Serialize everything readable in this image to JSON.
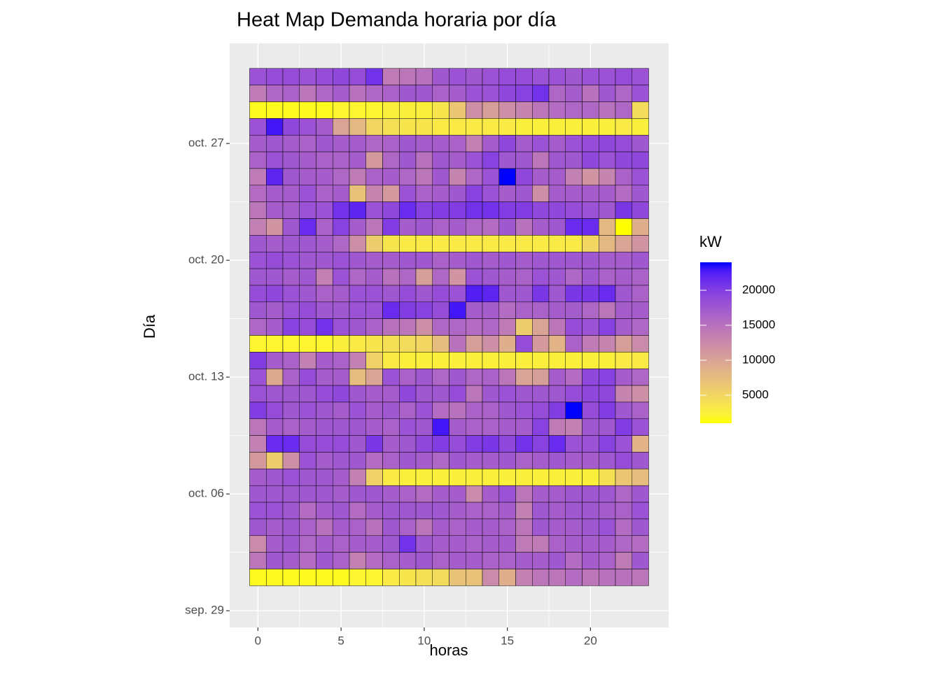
{
  "chart_data": {
    "type": "heatmap",
    "title": "Heat Map Demanda horaria por día",
    "x_label": "horas",
    "y_label": "Día",
    "x": [
      0,
      1,
      2,
      3,
      4,
      5,
      6,
      7,
      8,
      9,
      10,
      11,
      12,
      13,
      14,
      15,
      16,
      17,
      18,
      19,
      20,
      21,
      22,
      23
    ],
    "y": [
      "oct. 31",
      "oct. 30",
      "oct. 29",
      "oct. 28",
      "oct. 27",
      "oct. 26",
      "oct. 25",
      "oct. 24",
      "oct. 23",
      "oct. 22",
      "oct. 21",
      "oct. 20",
      "oct. 19",
      "oct. 18",
      "oct. 17",
      "oct. 16",
      "oct. 15",
      "oct. 14",
      "oct. 13",
      "oct. 12",
      "oct. 11",
      "oct. 10",
      "oct. 09",
      "oct. 08",
      "oct. 07",
      "oct. 06",
      "oct. 05",
      "oct. 04",
      "oct. 03",
      "oct. 02",
      "oct. 01"
    ],
    "values": [
      [
        18000,
        18500,
        18500,
        18000,
        18500,
        19000,
        18500,
        21000,
        14000,
        14500,
        15000,
        17500,
        18000,
        17500,
        18000,
        18500,
        18500,
        18000,
        18000,
        17500,
        18000,
        18000,
        18500,
        18000
      ],
      [
        14000,
        16000,
        16500,
        14500,
        16000,
        17000,
        15000,
        16000,
        16500,
        17500,
        17500,
        16500,
        17000,
        18000,
        18000,
        19000,
        19500,
        21000,
        16000,
        17000,
        15000,
        17500,
        16000,
        18000
      ],
      [
        1500,
        1500,
        1500,
        1500,
        1500,
        2000,
        2000,
        2000,
        2500,
        2500,
        2500,
        3500,
        6500,
        12000,
        10500,
        12000,
        13000,
        14500,
        15500,
        16000,
        16000,
        15000,
        16000,
        4500
      ],
      [
        18000,
        23000,
        19000,
        18000,
        17000,
        10000,
        8000,
        5000,
        4000,
        3500,
        3500,
        3000,
        3000,
        3000,
        3000,
        3000,
        2500,
        2500,
        2500,
        2500,
        2500,
        2500,
        3000,
        2500
      ],
      [
        17000,
        17500,
        17000,
        16500,
        17500,
        17000,
        17000,
        16000,
        16500,
        17500,
        17000,
        17000,
        16500,
        13500,
        17000,
        19000,
        17000,
        18000,
        17000,
        18000,
        18500,
        19000,
        18500,
        17500
      ],
      [
        16500,
        18000,
        17500,
        17000,
        16500,
        16500,
        17000,
        11000,
        16000,
        17500,
        15000,
        17500,
        17000,
        18000,
        19500,
        17500,
        17500,
        14500,
        17500,
        17500,
        19000,
        18000,
        19000,
        19000
      ],
      [
        14000,
        22000,
        17500,
        17000,
        17000,
        16000,
        14000,
        16500,
        17000,
        16000,
        14500,
        17500,
        13000,
        16000,
        18000,
        24000,
        19000,
        17000,
        17000,
        13500,
        11500,
        13000,
        16500,
        18000
      ],
      [
        15500,
        17000,
        17000,
        18000,
        16500,
        17000,
        7000,
        13000,
        11000,
        18000,
        16500,
        17000,
        17500,
        19500,
        18000,
        17000,
        17500,
        12000,
        17000,
        17000,
        17000,
        17000,
        15500,
        17500
      ],
      [
        14500,
        17000,
        17000,
        18000,
        18000,
        21000,
        22000,
        18000,
        19000,
        21500,
        19500,
        20000,
        20000,
        21000,
        21000,
        20000,
        20000,
        19000,
        19000,
        18500,
        18000,
        17500,
        20500,
        19000
      ],
      [
        13500,
        11500,
        17500,
        21500,
        16500,
        19500,
        17000,
        14500,
        20000,
        17000,
        17500,
        16500,
        17000,
        16000,
        15500,
        17500,
        15000,
        17000,
        17500,
        21500,
        21500,
        8000,
        1000,
        9000
      ],
      [
        17500,
        17000,
        17500,
        17500,
        17000,
        16000,
        12000,
        6000,
        3500,
        3000,
        3000,
        3000,
        3000,
        3000,
        3000,
        3000,
        3000,
        3000,
        3000,
        3000,
        5000,
        8000,
        10000,
        11500
      ],
      [
        18000,
        18500,
        18000,
        17500,
        17500,
        18000,
        17500,
        17000,
        17000,
        17500,
        17500,
        16500,
        17000,
        17500,
        17000,
        17500,
        17000,
        17500,
        17500,
        17500,
        17500,
        17000,
        17000,
        17500
      ],
      [
        17500,
        17500,
        17000,
        17500,
        13500,
        18000,
        16000,
        17000,
        15000,
        16000,
        10500,
        16000,
        11500,
        18000,
        17500,
        17000,
        16500,
        18000,
        17500,
        16000,
        17500,
        16500,
        17000,
        16500
      ],
      [
        18500,
        19000,
        18000,
        17500,
        16500,
        17000,
        18000,
        18000,
        17500,
        18500,
        17500,
        18500,
        18000,
        22500,
        22000,
        17500,
        17500,
        20500,
        17500,
        20500,
        20500,
        21500,
        17500,
        16500
      ],
      [
        17500,
        17000,
        18000,
        18500,
        17500,
        17500,
        18000,
        18000,
        21500,
        20000,
        19500,
        18500,
        23000,
        17000,
        17000,
        15500,
        16500,
        16500,
        17000,
        17000,
        16000,
        14500,
        17000,
        17000
      ],
      [
        16000,
        17000,
        19500,
        18500,
        21000,
        18000,
        17500,
        16500,
        15000,
        14500,
        12000,
        16000,
        16000,
        15500,
        16000,
        14000,
        6000,
        10000,
        14500,
        18500,
        18000,
        19500,
        17000,
        16000
      ],
      [
        2000,
        2000,
        2000,
        2000,
        2000,
        2500,
        3000,
        3500,
        4000,
        4500,
        5000,
        7500,
        15000,
        10500,
        12000,
        9000,
        18500,
        11000,
        8500,
        16500,
        14000,
        13000,
        10500,
        12500
      ],
      [
        20000,
        17000,
        16500,
        13500,
        17000,
        16500,
        13500,
        5500,
        3000,
        2500,
        2500,
        2500,
        2500,
        2500,
        2500,
        2500,
        2500,
        2500,
        2500,
        2500,
        2500,
        2500,
        3000,
        3000
      ],
      [
        18000,
        9500,
        16500,
        18500,
        17000,
        17000,
        7500,
        10000,
        18000,
        16500,
        17500,
        16000,
        17500,
        16000,
        16500,
        14500,
        10000,
        10500,
        17000,
        15500,
        19000,
        19500,
        17000,
        16000
      ],
      [
        18000,
        17500,
        17500,
        17500,
        18500,
        19000,
        17500,
        17000,
        17000,
        19000,
        17500,
        17500,
        18500,
        14500,
        17500,
        18000,
        17500,
        17500,
        17500,
        18500,
        19000,
        19000,
        13000,
        12000
      ],
      [
        20000,
        18500,
        17500,
        18000,
        17500,
        17000,
        18000,
        17000,
        17500,
        16500,
        18000,
        15500,
        15000,
        16500,
        16500,
        17500,
        18000,
        18500,
        20000,
        24000,
        18500,
        20000,
        17500,
        16500
      ],
      [
        14500,
        17000,
        16500,
        17000,
        17500,
        17500,
        17500,
        17000,
        16500,
        18000,
        17500,
        23000,
        17000,
        16500,
        16500,
        17000,
        17000,
        19500,
        14000,
        13500,
        17500,
        17500,
        20000,
        18000
      ],
      [
        13500,
        21500,
        21500,
        18500,
        18500,
        18500,
        17500,
        20500,
        17000,
        17500,
        19000,
        20000,
        18500,
        20000,
        20500,
        19000,
        21000,
        19500,
        21500,
        18000,
        18000,
        19500,
        18000,
        8500
      ],
      [
        11000,
        6000,
        12000,
        18000,
        17000,
        17500,
        17500,
        15500,
        16500,
        17500,
        17000,
        16000,
        17500,
        17000,
        17000,
        17500,
        16500,
        17000,
        17500,
        17000,
        17000,
        17500,
        18500,
        17500
      ],
      [
        17000,
        17500,
        18000,
        17500,
        17500,
        17000,
        13500,
        5500,
        3000,
        2500,
        2500,
        2500,
        2500,
        2500,
        2500,
        2500,
        2500,
        2500,
        2500,
        2500,
        2500,
        4000,
        6500,
        7500
      ],
      [
        17500,
        17500,
        17500,
        17500,
        17500,
        17000,
        17500,
        17500,
        17000,
        16500,
        15500,
        17000,
        17000,
        12500,
        17000,
        18000,
        14500,
        17000,
        17000,
        17500,
        17500,
        17500,
        16000,
        17500
      ],
      [
        18000,
        18000,
        17500,
        15500,
        17000,
        17500,
        15500,
        17000,
        17500,
        17500,
        17500,
        17500,
        17000,
        16500,
        16500,
        17000,
        13500,
        17500,
        17000,
        17500,
        17500,
        17000,
        16500,
        18000
      ],
      [
        17500,
        17000,
        17500,
        16500,
        15000,
        17000,
        16500,
        15000,
        17500,
        16500,
        14500,
        17000,
        16500,
        17000,
        17000,
        16500,
        14500,
        17500,
        17000,
        17000,
        17500,
        18000,
        15500,
        17500
      ],
      [
        12500,
        17000,
        17500,
        16000,
        17000,
        16500,
        17000,
        17000,
        17500,
        21000,
        17500,
        17000,
        17000,
        16500,
        17000,
        17000,
        14000,
        14000,
        16500,
        17000,
        17000,
        17000,
        16000,
        15500
      ],
      [
        14500,
        17500,
        17000,
        15500,
        17500,
        16500,
        13500,
        15500,
        16500,
        17000,
        17500,
        16500,
        17000,
        17000,
        16500,
        16500,
        17000,
        17000,
        17500,
        15500,
        17000,
        16500,
        14000,
        17500
      ],
      [
        1500,
        1500,
        1500,
        1500,
        1500,
        1500,
        2000,
        2000,
        3000,
        3500,
        4000,
        4500,
        7000,
        7000,
        12500,
        9000,
        13500,
        14500,
        14500,
        15500,
        14500,
        15000,
        15000,
        14500
      ]
    ],
    "xlim": [
      -1.7,
      24.7
    ],
    "xticks": [
      0,
      5,
      10,
      15,
      20
    ],
    "ylim": [
      "sep. 28",
      "nov. 02"
    ],
    "yticks": [
      "sep. 29",
      "oct. 06",
      "oct. 13",
      "oct. 20",
      "oct. 27"
    ],
    "legend_title": "kW",
    "colorlim": [
      1000,
      24000
    ],
    "colorticks": [
      5000,
      10000,
      15000,
      20000
    ],
    "color_low": "#ffff00",
    "color_high": "#0000ff",
    "grid": true
  }
}
